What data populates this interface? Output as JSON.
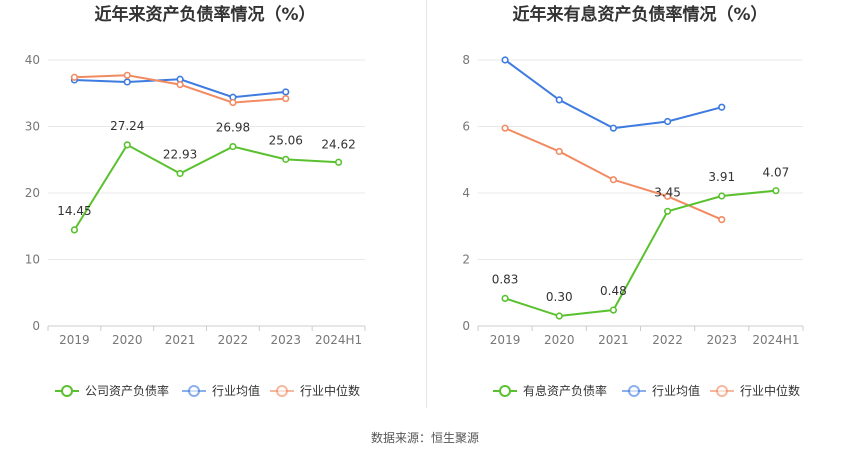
{
  "source_text": "数据来源：恒生聚源",
  "chart_data": [
    {
      "type": "line",
      "title": "近年来资产负债率情况（%）",
      "categories": [
        "2019",
        "2020",
        "2021",
        "2022",
        "2023",
        "2024H1"
      ],
      "ylim": [
        0,
        40
      ],
      "yticks": [
        "0",
        "10",
        "20",
        "30",
        "40"
      ],
      "grid": true,
      "legend_position": "bottom",
      "series": [
        {
          "name": "公司资产负债率",
          "color": "#5ac12e",
          "values": [
            14.45,
            27.24,
            22.93,
            26.98,
            25.06,
            24.62
          ],
          "labels": [
            "14.45",
            "27.24",
            "22.93",
            "26.98",
            "25.06",
            "24.62"
          ]
        },
        {
          "name": "行业均值",
          "color": "#3d7be0",
          "values": [
            37.0,
            36.7,
            37.1,
            34.4,
            35.2,
            null
          ]
        },
        {
          "name": "行业中位数",
          "color": "#f28a62",
          "values": [
            37.4,
            37.7,
            36.3,
            33.6,
            34.2,
            null
          ]
        }
      ]
    },
    {
      "type": "line",
      "title": "近年来有息资产负债率情况（%）",
      "categories": [
        "2019",
        "2020",
        "2021",
        "2022",
        "2023",
        "2024H1"
      ],
      "ylim": [
        0,
        8
      ],
      "yticks": [
        "0",
        "2",
        "4",
        "6",
        "8"
      ],
      "grid": true,
      "legend_position": "bottom",
      "series": [
        {
          "name": "有息资产负债率",
          "color": "#5ac12e",
          "values": [
            0.83,
            0.3,
            0.48,
            3.45,
            3.91,
            4.07
          ],
          "labels": [
            "0.83",
            "0.30",
            "0.48",
            "3.45",
            "3.91",
            "4.07"
          ]
        },
        {
          "name": "行业均值",
          "color": "#3d7be0",
          "values": [
            8.0,
            6.8,
            5.95,
            6.15,
            6.58,
            null
          ]
        },
        {
          "name": "行业中位数",
          "color": "#f28a62",
          "values": [
            5.95,
            5.25,
            4.4,
            3.9,
            3.2,
            null
          ]
        }
      ]
    }
  ]
}
